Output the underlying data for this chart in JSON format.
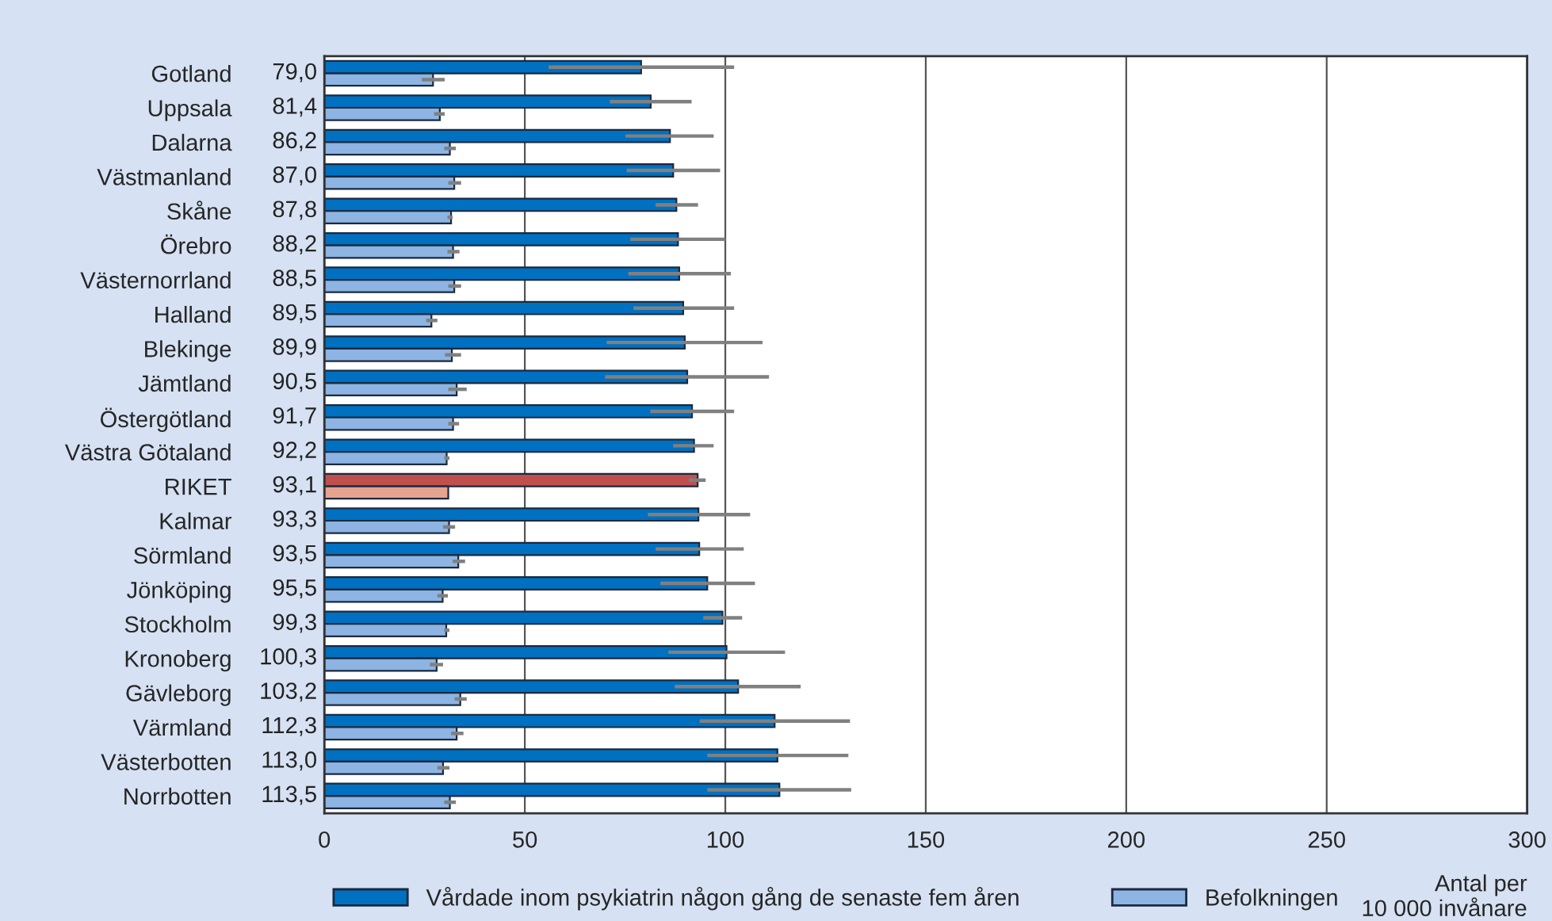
{
  "chart_data": {
    "type": "bar",
    "orientation": "horizontal",
    "categories": [
      "Gotland",
      "Uppsala",
      "Dalarna",
      "Västmanland",
      "Skåne",
      "Örebro",
      "Västernorrland",
      "Halland",
      "Blekinge",
      "Jämtland",
      "Östergötland",
      "Västra Götaland",
      "RIKET",
      "Kalmar",
      "Sörmland",
      "Jönköping",
      "Stockholm",
      "Kronoberg",
      "Gävleborg",
      "Värmland",
      "Västerbotten",
      "Norrbotten"
    ],
    "series": [
      {
        "name": "Vårdade inom psykiatrin någon gång de senaste fem åren",
        "color": "#0070c0",
        "colors": [
          "#0070c0",
          "#0070c0",
          "#0070c0",
          "#0070c0",
          "#0070c0",
          "#0070c0",
          "#0070c0",
          "#0070c0",
          "#0070c0",
          "#0070c0",
          "#0070c0",
          "#0070c0",
          "#c0504d",
          "#0070c0",
          "#0070c0",
          "#0070c0",
          "#0070c0",
          "#0070c0",
          "#0070c0",
          "#0070c0",
          "#0070c0",
          "#0070c0"
        ],
        "values": [
          79.0,
          81.4,
          86.2,
          87.0,
          87.8,
          88.2,
          88.5,
          89.5,
          89.9,
          90.5,
          91.7,
          92.2,
          93.1,
          93.3,
          93.5,
          95.5,
          99.3,
          100.3,
          103.2,
          112.3,
          113.0,
          113.5
        ],
        "value_labels": [
          "79,0",
          "81,4",
          "86,2",
          "87,0",
          "87,8",
          "88,2",
          "88,5",
          "89,5",
          "89,9",
          "90,5",
          "91,7",
          "92,2",
          "93,1",
          "93,3",
          "93,5",
          "95,5",
          "99,3",
          "100,3",
          "103,2",
          "112,3",
          "113,0",
          "113,5"
        ],
        "errors": [
          [
            55.9,
            102.2
          ],
          [
            71.2,
            91.6
          ],
          [
            75.1,
            97.1
          ],
          [
            75.4,
            98.7
          ],
          [
            82.6,
            93.2
          ],
          [
            76.3,
            100.0
          ],
          [
            75.8,
            101.4
          ],
          [
            77.1,
            102.2
          ],
          [
            70.4,
            109.3
          ],
          [
            70.0,
            110.9
          ],
          [
            81.3,
            102.2
          ],
          [
            87.0,
            97.1
          ],
          [
            90.9,
            95.1
          ],
          [
            80.7,
            106.2
          ],
          [
            82.6,
            104.6
          ],
          [
            83.8,
            107.4
          ],
          [
            94.5,
            104.2
          ],
          [
            85.8,
            114.9
          ],
          [
            87.4,
            118.8
          ],
          [
            93.6,
            131.1
          ],
          [
            95.5,
            130.7
          ],
          [
            95.5,
            131.4
          ]
        ]
      },
      {
        "name": "Befolkningen",
        "color": "#8db4e2",
        "colors": [
          "#8db4e2",
          "#8db4e2",
          "#8db4e2",
          "#8db4e2",
          "#8db4e2",
          "#8db4e2",
          "#8db4e2",
          "#8db4e2",
          "#8db4e2",
          "#8db4e2",
          "#8db4e2",
          "#8db4e2",
          "#e6a390",
          "#8db4e2",
          "#8db4e2",
          "#8db4e2",
          "#8db4e2",
          "#8db4e2",
          "#8db4e2",
          "#8db4e2",
          "#8db4e2",
          "#8db4e2"
        ],
        "values": [
          27.1,
          28.8,
          31.3,
          32.4,
          31.6,
          32.1,
          32.4,
          26.7,
          31.8,
          33.0,
          32.1,
          30.5,
          30.9,
          31.1,
          33.4,
          29.5,
          30.4,
          28.0,
          33.9,
          33.0,
          29.6,
          31.3
        ],
        "errors": [
          [
            24.3,
            30.0
          ],
          [
            27.4,
            30.0
          ],
          [
            29.9,
            32.8
          ],
          [
            30.9,
            34.1
          ],
          [
            30.7,
            32.0
          ],
          [
            30.7,
            33.7
          ],
          [
            30.9,
            34.1
          ],
          [
            25.4,
            28.2
          ],
          [
            30.1,
            34.1
          ],
          [
            30.9,
            35.5
          ],
          [
            30.9,
            33.6
          ],
          [
            29.9,
            31.2
          ],
          null,
          [
            29.6,
            32.6
          ],
          [
            32.0,
            35.1
          ],
          [
            28.2,
            30.8
          ],
          [
            29.9,
            31.2
          ],
          [
            26.3,
            29.6
          ],
          [
            32.5,
            35.5
          ],
          [
            31.6,
            34.7
          ],
          [
            28.2,
            31.2
          ],
          [
            29.9,
            32.8
          ]
        ]
      }
    ],
    "xlim": [
      0,
      300
    ],
    "xticks": [
      0,
      50,
      100,
      150,
      200,
      250,
      300
    ],
    "xlabel": "Antal per\n10 000 invånare",
    "grid": "x",
    "legend": "bottom"
  }
}
